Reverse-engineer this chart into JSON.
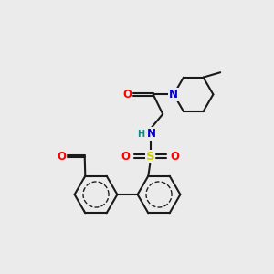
{
  "bg_color": "#ebebeb",
  "bond_color": "#1a1a1a",
  "bond_width": 1.5,
  "atom_colors": {
    "O": "#ff0000",
    "N": "#0000cc",
    "S": "#cccc00",
    "H": "#009090",
    "C": "#1a1a1a"
  },
  "font_size_atom": 8.5,
  "font_size_small": 7.0,
  "hex_r": 0.78
}
